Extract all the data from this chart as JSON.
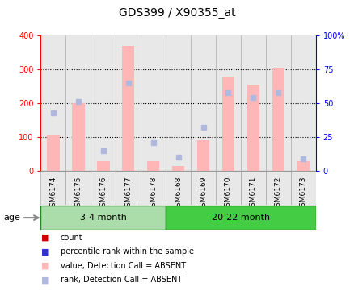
{
  "title": "GDS399 / X90355_at",
  "samples": [
    "GSM6174",
    "GSM6175",
    "GSM6176",
    "GSM6177",
    "GSM6178",
    "GSM6168",
    "GSM6169",
    "GSM6170",
    "GSM6171",
    "GSM6172",
    "GSM6173"
  ],
  "bar_values": [
    105,
    200,
    28,
    370,
    30,
    15,
    90,
    278,
    255,
    305,
    28
  ],
  "rank_values": [
    43,
    51,
    15,
    65,
    21,
    10,
    32,
    58,
    54,
    58,
    9
  ],
  "ylim_left": [
    0,
    400
  ],
  "ylim_right": [
    0,
    100
  ],
  "yticks_left": [
    0,
    100,
    200,
    300,
    400
  ],
  "yticks_right": [
    0,
    25,
    50,
    75,
    100
  ],
  "yticklabels_right": [
    "0",
    "25",
    "50",
    "75",
    "100%"
  ],
  "bar_color_absent": "#ffb6b6",
  "rank_color_absent": "#b0b8e0",
  "grid_dotted_vals": [
    100,
    200,
    300
  ],
  "col_bg_color": "#e8e8e8",
  "groups": [
    {
      "label": "3-4 month",
      "start": 0,
      "end": 4
    },
    {
      "label": "20-22 month",
      "start": 5,
      "end": 10
    }
  ],
  "group_colors": [
    "#aaddaa",
    "#44cc44"
  ],
  "group_edge_color": "#228822",
  "age_label": "age",
  "legend_items": [
    {
      "label": "count",
      "color": "#cc0000"
    },
    {
      "label": "percentile rank within the sample",
      "color": "#3333cc"
    },
    {
      "label": "value, Detection Call = ABSENT",
      "color": "#ffb6b6"
    },
    {
      "label": "rank, Detection Call = ABSENT",
      "color": "#b0b8e0"
    }
  ]
}
